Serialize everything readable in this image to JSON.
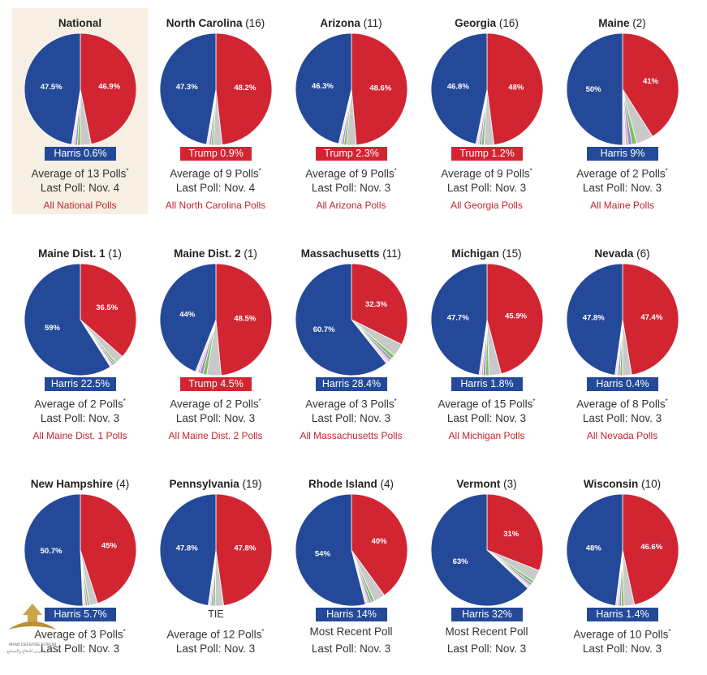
{
  "colors": {
    "harris": "#244999",
    "trump": "#d22532",
    "other": [
      "#c9c9c9",
      "#7fbf5a",
      "#9a89d3",
      "#e89fb0",
      "#e0e0e0"
    ]
  },
  "watermark": {
    "label": "ARAB DEFENSE FORUM",
    "sublabel": "المنتدى العربي للدفاع والتسليح"
  },
  "chart_data": [
    {
      "type": "pie",
      "title": "National",
      "ev": "",
      "slices": [
        {
          "name": "Harris",
          "value": 47.5,
          "label": "47.5%"
        },
        {
          "name": "Trump",
          "value": 46.9,
          "label": "46.9%"
        },
        {
          "name": "Other",
          "value": 5.6,
          "label": ""
        }
      ],
      "lead": {
        "text": "Harris 0.6%",
        "party": "harris"
      },
      "line1": "Average of 13 Polls",
      "asterisk": "*",
      "line2": "Last Poll: Nov. 4",
      "link": "All National Polls",
      "highlight": true
    },
    {
      "type": "pie",
      "title": "North Carolina",
      "ev": "(16)",
      "slices": [
        {
          "name": "Harris",
          "value": 47.3,
          "label": "47.3%"
        },
        {
          "name": "Trump",
          "value": 48.2,
          "label": "48.2%"
        },
        {
          "name": "Other",
          "value": 4.5,
          "label": ""
        }
      ],
      "lead": {
        "text": "Trump 0.9%",
        "party": "trump"
      },
      "line1": "Average of 9 Polls",
      "asterisk": "*",
      "line2": "Last Poll: Nov. 4",
      "link": "All North Carolina Polls"
    },
    {
      "type": "pie",
      "title": "Arizona",
      "ev": "(11)",
      "slices": [
        {
          "name": "Harris",
          "value": 46.3,
          "label": "46.3%"
        },
        {
          "name": "Trump",
          "value": 48.6,
          "label": "48.6%"
        },
        {
          "name": "Other",
          "value": 5.1,
          "label": ""
        }
      ],
      "lead": {
        "text": "Trump 2.3%",
        "party": "trump"
      },
      "line1": "Average of 9 Polls",
      "asterisk": "*",
      "line2": "Last Poll: Nov. 3",
      "link": "All Arizona Polls"
    },
    {
      "type": "pie",
      "title": "Georgia",
      "ev": "(16)",
      "slices": [
        {
          "name": "Harris",
          "value": 46.8,
          "label": "46.8%"
        },
        {
          "name": "Trump",
          "value": 48,
          "label": "48%"
        },
        {
          "name": "Other",
          "value": 5.2,
          "label": ""
        }
      ],
      "lead": {
        "text": "Trump 1.2%",
        "party": "trump"
      },
      "line1": "Average of 9 Polls",
      "asterisk": "*",
      "line2": "Last Poll: Nov. 3",
      "link": "All Georgia Polls"
    },
    {
      "type": "pie",
      "title": "Maine",
      "ev": "(2)",
      "slices": [
        {
          "name": "Harris",
          "value": 50,
          "label": "50%"
        },
        {
          "name": "Trump",
          "value": 41,
          "label": "41%"
        },
        {
          "name": "Other",
          "value": 9,
          "label": ""
        }
      ],
      "lead": {
        "text": "Harris 9%",
        "party": "harris"
      },
      "line1": "Average of 2 Polls",
      "asterisk": "*",
      "line2": "Last Poll: Nov. 3",
      "link": "All Maine Polls"
    },
    {
      "type": "pie",
      "title": "Maine Dist. 1",
      "ev": "(1)",
      "slices": [
        {
          "name": "Harris",
          "value": 59,
          "label": "59%"
        },
        {
          "name": "Trump",
          "value": 36.5,
          "label": "36.5%"
        },
        {
          "name": "Other",
          "value": 4.5,
          "label": ""
        }
      ],
      "lead": {
        "text": "Harris 22.5%",
        "party": "harris"
      },
      "line1": "Average of 2 Polls",
      "asterisk": "*",
      "line2": "Last Poll: Nov. 3",
      "link": "All Maine Dist. 1 Polls"
    },
    {
      "type": "pie",
      "title": "Maine Dist. 2",
      "ev": "(1)",
      "slices": [
        {
          "name": "Harris",
          "value": 44,
          "label": "44%"
        },
        {
          "name": "Trump",
          "value": 48.5,
          "label": "48.5%"
        },
        {
          "name": "Other",
          "value": 7.5,
          "label": ""
        }
      ],
      "lead": {
        "text": "Trump 4.5%",
        "party": "trump"
      },
      "line1": "Average of 2 Polls",
      "asterisk": "*",
      "line2": "Last Poll: Nov. 3",
      "link": "All Maine Dist. 2 Polls"
    },
    {
      "type": "pie",
      "title": "Massachusetts",
      "ev": "(11)",
      "slices": [
        {
          "name": "Harris",
          "value": 60.7,
          "label": "60.7%"
        },
        {
          "name": "Trump",
          "value": 32.3,
          "label": "32.3%"
        },
        {
          "name": "Other",
          "value": 7,
          "label": ""
        }
      ],
      "lead": {
        "text": "Harris 28.4%",
        "party": "harris"
      },
      "line1": "Average of 3 Polls",
      "asterisk": "*",
      "line2": "Last Poll: Nov. 3",
      "link": "All Massachusetts Polls"
    },
    {
      "type": "pie",
      "title": "Michigan",
      "ev": "(15)",
      "slices": [
        {
          "name": "Harris",
          "value": 47.7,
          "label": "47.7%"
        },
        {
          "name": "Trump",
          "value": 45.9,
          "label": "45.9%"
        },
        {
          "name": "Other",
          "value": 6.4,
          "label": ""
        }
      ],
      "lead": {
        "text": "Harris 1.8%",
        "party": "harris"
      },
      "line1": "Average of 15 Polls",
      "asterisk": "*",
      "line2": "Last Poll: Nov. 3",
      "link": "All Michigan Polls"
    },
    {
      "type": "pie",
      "title": "Nevada",
      "ev": "(6)",
      "slices": [
        {
          "name": "Harris",
          "value": 47.8,
          "label": "47.8%"
        },
        {
          "name": "Trump",
          "value": 47.4,
          "label": "47.4%"
        },
        {
          "name": "Other",
          "value": 4.8,
          "label": ""
        }
      ],
      "lead": {
        "text": "Harris 0.4%",
        "party": "harris"
      },
      "line1": "Average of 8 Polls",
      "asterisk": "*",
      "line2": "Last Poll: Nov. 3",
      "link": "All Nevada Polls"
    },
    {
      "type": "pie",
      "title": "New Hampshire",
      "ev": "(4)",
      "slices": [
        {
          "name": "Harris",
          "value": 50.7,
          "label": "50.7%"
        },
        {
          "name": "Trump",
          "value": 45,
          "label": "45%"
        },
        {
          "name": "Other",
          "value": 4.3,
          "label": ""
        }
      ],
      "lead": {
        "text": "Harris 5.7%",
        "party": "harris"
      },
      "line1": "Average of 3 Polls",
      "asterisk": "*",
      "line2": "Last Poll: Nov. 3",
      "link": ""
    },
    {
      "type": "pie",
      "title": "Pennsylvania",
      "ev": "(19)",
      "slices": [
        {
          "name": "Harris",
          "value": 47.8,
          "label": "47.8%"
        },
        {
          "name": "Trump",
          "value": 47.8,
          "label": "47.8%"
        },
        {
          "name": "Other",
          "value": 4.4,
          "label": ""
        }
      ],
      "lead": {
        "text": "TIE",
        "party": "tie"
      },
      "line1": "Average of 12 Polls",
      "asterisk": "*",
      "line2": "Last Poll: Nov. 3",
      "link": ""
    },
    {
      "type": "pie",
      "title": "Rhode Island",
      "ev": "(4)",
      "slices": [
        {
          "name": "Harris",
          "value": 54,
          "label": "54%"
        },
        {
          "name": "Trump",
          "value": 40,
          "label": "40%"
        },
        {
          "name": "Other",
          "value": 6,
          "label": ""
        }
      ],
      "lead": {
        "text": "Harris 14%",
        "party": "harris"
      },
      "line1": "Most Recent Poll",
      "asterisk": "",
      "line2": "Last Poll: Nov. 3",
      "link": ""
    },
    {
      "type": "pie",
      "title": "Vermont",
      "ev": "(3)",
      "slices": [
        {
          "name": "Harris",
          "value": 63,
          "label": "63%"
        },
        {
          "name": "Trump",
          "value": 31,
          "label": "31%"
        },
        {
          "name": "Other",
          "value": 6,
          "label": ""
        }
      ],
      "lead": {
        "text": "Harris 32%",
        "party": "harris"
      },
      "line1": "Most Recent Poll",
      "asterisk": "",
      "line2": "Last Poll: Nov. 3",
      "link": ""
    },
    {
      "type": "pie",
      "title": "Wisconsin",
      "ev": "(10)",
      "slices": [
        {
          "name": "Harris",
          "value": 48,
          "label": "48%"
        },
        {
          "name": "Trump",
          "value": 46.6,
          "label": "46.6%"
        },
        {
          "name": "Other",
          "value": 5.4,
          "label": ""
        }
      ],
      "lead": {
        "text": "Harris 1.4%",
        "party": "harris"
      },
      "line1": "Average of 10 Polls",
      "asterisk": "*",
      "line2": "Last Poll: Nov. 3",
      "link": ""
    }
  ]
}
